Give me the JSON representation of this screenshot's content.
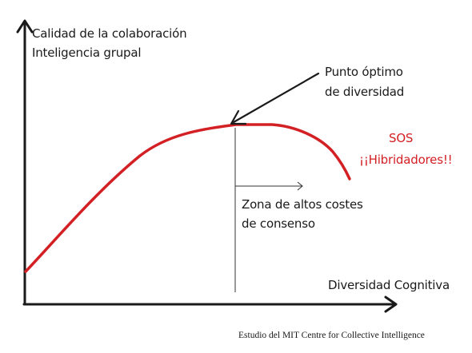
{
  "y_axis_label": {
    "line1": "Calidad de la colaboración",
    "line2": "Inteligencia grupal"
  },
  "x_axis_label": "Diversidad Cognitiva",
  "optimum_label": {
    "line1": "Punto óptimo",
    "line2": "de diversidad"
  },
  "zone_label": {
    "line1": "Zona de altos costes",
    "line2": "de consenso"
  },
  "alert_label": {
    "line1": "SOS",
    "line2": "¡¡Hibridadores!!"
  },
  "credit": "Estudio del MIT Centre for Collective Intelligence",
  "colors": {
    "curve": "#d32024",
    "ink": "#1a1a1a",
    "alert_text": "#d32024"
  }
}
